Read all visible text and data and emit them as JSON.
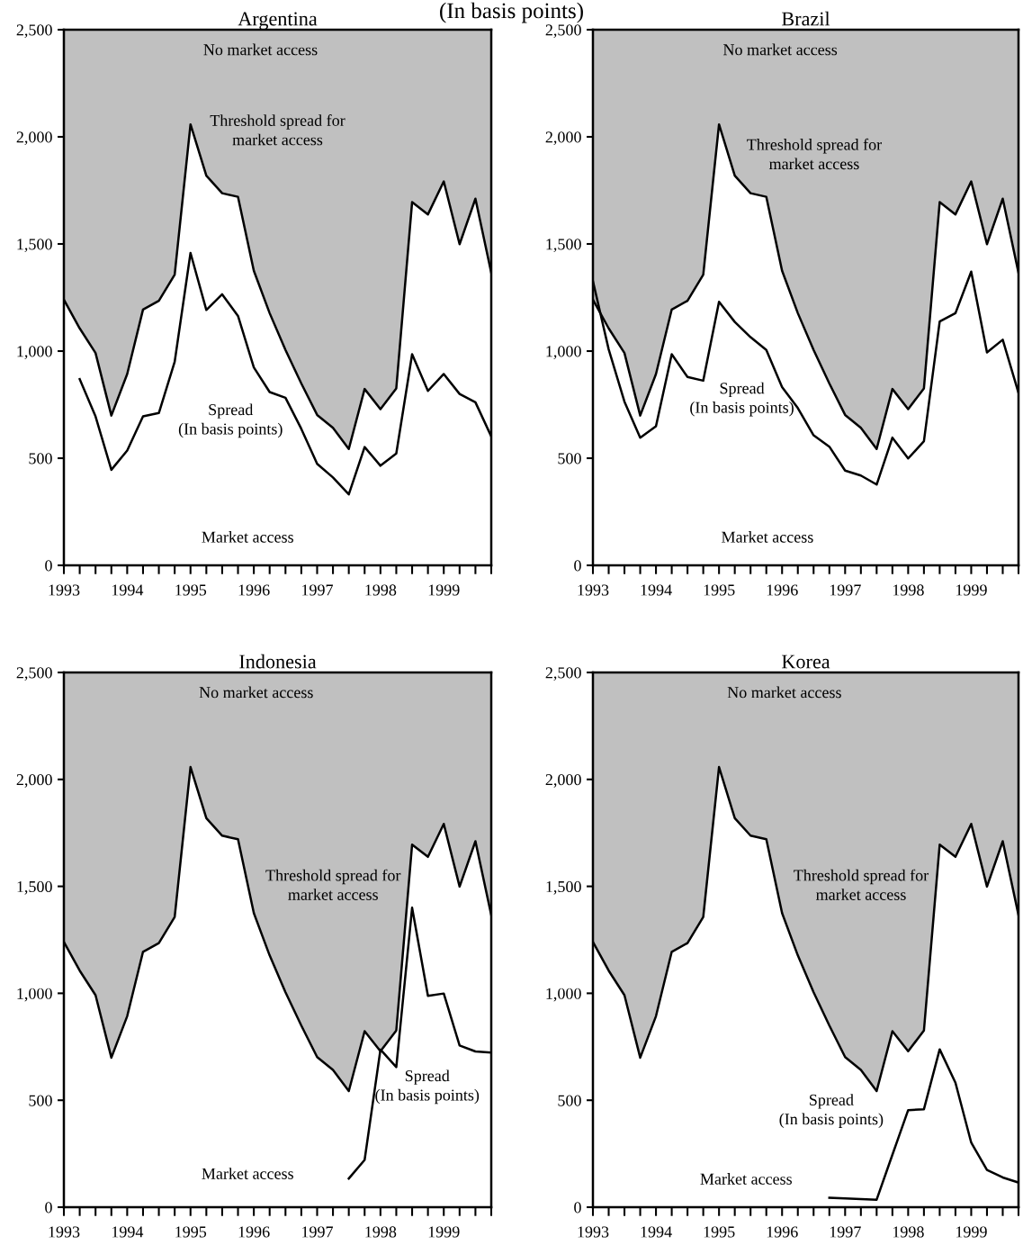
{
  "chart_data": [
    {
      "type": "line",
      "title": "Argentina",
      "annotations": [
        "(In basis points)",
        "No market access",
        "Threshold spread for\nmarket access",
        "Spread\n(In basis points)",
        "Market access"
      ],
      "x": [
        1993,
        1993.25,
        1993.5,
        1993.75,
        1994,
        1994.25,
        1994.5,
        1994.75,
        1995,
        1995.25,
        1995.5,
        1995.75,
        1996,
        1996.25,
        1996.5,
        1996.75,
        1997,
        1997.25,
        1997.5,
        1997.75,
        1998,
        1998.25,
        1998.5,
        1998.75,
        1999,
        1999.25,
        1999.5,
        1999.75
      ],
      "series": [
        {
          "type": "area",
          "color": "#ffffff",
          "values": [
            1240,
            1106,
            991,
            699,
            893,
            1194,
            1235,
            1357,
            2058,
            1819,
            1737,
            1720,
            1375,
            1177,
            1005,
            849,
            702,
            642,
            543,
            823,
            729,
            826,
            1695,
            1638,
            1792,
            1499,
            1711,
            1366
          ]
        },
        {
          "color": "#000000",
          "x": [
            1993.25,
            1993.5,
            1993.75,
            1994,
            1994.25,
            1994.5,
            1994.75,
            1995,
            1995.25,
            1995.5,
            1995.75,
            1996,
            1996.25,
            1996.5,
            1996.75,
            1997,
            1997.25,
            1997.5,
            1997.75,
            1998,
            1998.25,
            1998.5,
            1998.75,
            1999,
            1999.25,
            1999.5,
            1999.75
          ],
          "values": [
            869,
            695,
            446,
            536,
            695,
            711,
            950,
            1458,
            1192,
            1265,
            1164,
            924,
            809,
            782,
            637,
            474,
            410,
            331,
            552,
            465,
            522,
            985,
            814,
            893,
            800,
            761,
            602
          ]
        }
      ],
      "xlim": [
        1993,
        1999.75
      ],
      "ylim": [
        0,
        2500
      ],
      "xticks": [
        1993,
        {
          "value": 1993.25,
          "label": null
        },
        {
          "value": 1993.5,
          "label": null
        },
        {
          "value": 1993.75,
          "label": null
        },
        1994,
        {
          "value": 1994.25,
          "label": null
        },
        {
          "value": 1994.5,
          "label": null
        },
        {
          "value": 1994.75,
          "label": null
        },
        1995,
        {
          "value": 1995.25,
          "label": null
        },
        {
          "value": 1995.5,
          "label": null
        },
        {
          "value": 1995.75,
          "label": null
        },
        1996,
        {
          "value": 1996.25,
          "label": null
        },
        {
          "value": 1996.5,
          "label": null
        },
        {
          "value": 1996.75,
          "label": null
        },
        1997,
        {
          "value": 1997.25,
          "label": null
        },
        {
          "value": 1997.5,
          "label": null
        },
        {
          "value": 1997.75,
          "label": null
        },
        1998,
        {
          "value": 1998.25,
          "label": null
        },
        {
          "value": 1998.5,
          "label": null
        },
        {
          "value": 1998.75,
          "label": null
        },
        1999,
        {
          "value": 1999.25,
          "label": null
        },
        {
          "value": 1999.5,
          "label": null
        },
        {
          "value": 1999.75,
          "label": null
        }
      ],
      "yticks": [
        0,
        {
          "value": 500,
          "label": "500"
        },
        {
          "value": 1000,
          "label": "1,000"
        },
        {
          "value": 1500,
          "label": "1,500"
        },
        {
          "value": 2000,
          "label": "2,000"
        },
        {
          "value": 2500,
          "label": "2,500"
        }
      ]
    },
    {
      "type": "line",
      "title": "Brazil",
      "annotations": [
        "No market access",
        "Threshold spread for\nmarket access",
        "Spread\n(In basis points)",
        "Market access"
      ],
      "x": [
        1993,
        1993.25,
        1993.5,
        1993.75,
        1994,
        1994.25,
        1994.5,
        1994.75,
        1995,
        1995.25,
        1995.5,
        1995.75,
        1996,
        1996.25,
        1996.5,
        1996.75,
        1997,
        1997.25,
        1997.5,
        1997.75,
        1998,
        1998.25,
        1998.5,
        1998.75,
        1999,
        1999.25,
        1999.5,
        1999.75
      ],
      "series": [
        {
          "type": "area",
          "color": "#ffffff",
          "values": [
            1240,
            1106,
            991,
            699,
            893,
            1194,
            1235,
            1357,
            2058,
            1819,
            1737,
            1720,
            1375,
            1177,
            1005,
            849,
            702,
            642,
            543,
            823,
            729,
            826,
            1695,
            1638,
            1792,
            1499,
            1711,
            1366
          ]
        },
        {
          "color": "#000000",
          "values": [
            1327,
            1008,
            764,
            596,
            649,
            985,
            879,
            862,
            1230,
            1136,
            1065,
            1005,
            832,
            734,
            607,
            554,
            442,
            419,
            377,
            596,
            499,
            579,
            1138,
            1177,
            1371,
            994,
            1053,
            805
          ]
        }
      ],
      "xlim": [
        1993,
        1999.75
      ],
      "ylim": [
        0,
        2500
      ],
      "xticks": [
        1993,
        {
          "value": 1993.25,
          "label": null
        },
        {
          "value": 1993.5,
          "label": null
        },
        {
          "value": 1993.75,
          "label": null
        },
        1994,
        {
          "value": 1994.25,
          "label": null
        },
        {
          "value": 1994.5,
          "label": null
        },
        {
          "value": 1994.75,
          "label": null
        },
        1995,
        {
          "value": 1995.25,
          "label": null
        },
        {
          "value": 1995.5,
          "label": null
        },
        {
          "value": 1995.75,
          "label": null
        },
        1996,
        {
          "value": 1996.25,
          "label": null
        },
        {
          "value": 1996.5,
          "label": null
        },
        {
          "value": 1996.75,
          "label": null
        },
        1997,
        {
          "value": 1997.25,
          "label": null
        },
        {
          "value": 1997.5,
          "label": null
        },
        {
          "value": 1997.75,
          "label": null
        },
        1998,
        {
          "value": 1998.25,
          "label": null
        },
        {
          "value": 1998.5,
          "label": null
        },
        {
          "value": 1998.75,
          "label": null
        },
        1999,
        {
          "value": 1999.25,
          "label": null
        },
        {
          "value": 1999.5,
          "label": null
        },
        {
          "value": 1999.75,
          "label": null
        }
      ],
      "yticks": [
        0,
        {
          "value": 500,
          "label": "500"
        },
        {
          "value": 1000,
          "label": "1,000"
        },
        {
          "value": 1500,
          "label": "1,500"
        },
        {
          "value": 2000,
          "label": "2,000"
        },
        {
          "value": 2500,
          "label": "2,500"
        }
      ]
    },
    {
      "type": "line",
      "title": "Indonesia",
      "annotations": [
        "No market access",
        "Threshold spread for\nmarket access",
        "Spread\n(In basis points)",
        "Market access"
      ],
      "x": [
        1993,
        1993.25,
        1993.5,
        1993.75,
        1994,
        1994.25,
        1994.5,
        1994.75,
        1995,
        1995.25,
        1995.5,
        1995.75,
        1996,
        1996.25,
        1996.5,
        1996.75,
        1997,
        1997.25,
        1997.5,
        1997.75,
        1998,
        1998.25,
        1998.5,
        1998.75,
        1999,
        1999.25,
        1999.5,
        1999.75
      ],
      "series": [
        {
          "type": "area",
          "color": "#ffffff",
          "values": [
            1240,
            1106,
            991,
            699,
            893,
            1194,
            1235,
            1357,
            2058,
            1819,
            1737,
            1720,
            1375,
            1177,
            1005,
            849,
            702,
            642,
            543,
            823,
            729,
            826,
            1695,
            1638,
            1792,
            1499,
            1711,
            1366
          ]
        },
        {
          "color": "#000000",
          "x": [
            1997.5,
            1997.75,
            1998,
            1998.25,
            1998.5,
            1998.75,
            1999,
            1999.25,
            1999.5,
            1999.75
          ],
          "values": [
            134,
            221,
            737,
            655,
            1400,
            988,
            999,
            756,
            728,
            723
          ]
        }
      ],
      "xlim": [
        1993,
        1999.75
      ],
      "ylim": [
        0,
        2500
      ],
      "xticks": [
        1993,
        {
          "value": 1993.25,
          "label": null
        },
        {
          "value": 1993.5,
          "label": null
        },
        {
          "value": 1993.75,
          "label": null
        },
        1994,
        {
          "value": 1994.25,
          "label": null
        },
        {
          "value": 1994.5,
          "label": null
        },
        {
          "value": 1994.75,
          "label": null
        },
        1995,
        {
          "value": 1995.25,
          "label": null
        },
        {
          "value": 1995.5,
          "label": null
        },
        {
          "value": 1995.75,
          "label": null
        },
        1996,
        {
          "value": 1996.25,
          "label": null
        },
        {
          "value": 1996.5,
          "label": null
        },
        {
          "value": 1996.75,
          "label": null
        },
        1997,
        {
          "value": 1997.25,
          "label": null
        },
        {
          "value": 1997.5,
          "label": null
        },
        {
          "value": 1997.75,
          "label": null
        },
        1998,
        {
          "value": 1998.25,
          "label": null
        },
        {
          "value": 1998.5,
          "label": null
        },
        {
          "value": 1998.75,
          "label": null
        },
        1999,
        {
          "value": 1999.25,
          "label": null
        },
        {
          "value": 1999.5,
          "label": null
        },
        {
          "value": 1999.75,
          "label": null
        }
      ],
      "yticks": [
        0,
        {
          "value": 500,
          "label": "500"
        },
        {
          "value": 1000,
          "label": "1,000"
        },
        {
          "value": 1500,
          "label": "1,500"
        },
        {
          "value": 2000,
          "label": "2,000"
        },
        {
          "value": 2500,
          "label": "2,500"
        }
      ]
    },
    {
      "type": "line",
      "title": "Korea",
      "annotations": [
        "No market access",
        "Threshold spread for\nmarket access",
        "Spread\n(In basis points)",
        "Market access"
      ],
      "x": [
        1993,
        1993.25,
        1993.5,
        1993.75,
        1994,
        1994.25,
        1994.5,
        1994.75,
        1995,
        1995.25,
        1995.5,
        1995.75,
        1996,
        1996.25,
        1996.5,
        1996.75,
        1997,
        1997.25,
        1997.5,
        1997.75,
        1998,
        1998.25,
        1998.5,
        1998.75,
        1999,
        1999.25,
        1999.5,
        1999.75
      ],
      "series": [
        {
          "type": "area",
          "color": "#ffffff",
          "values": [
            1240,
            1106,
            991,
            699,
            893,
            1194,
            1235,
            1357,
            2058,
            1819,
            1737,
            1720,
            1375,
            1177,
            1005,
            849,
            702,
            642,
            543,
            823,
            729,
            826,
            1695,
            1638,
            1792,
            1499,
            1711,
            1366
          ]
        },
        {
          "color": "#000000",
          "x": [
            1996.75,
            1997,
            1997.25,
            1997.5,
            1997.75,
            1998,
            1998.25,
            1998.5,
            1998.75,
            1999,
            1999.25,
            1999.5,
            1999.75
          ],
          "values": [
            44,
            41,
            38,
            35,
            245,
            454,
            458,
            738,
            582,
            302,
            174,
            139,
            115
          ]
        }
      ],
      "xlim": [
        1993,
        1999.75
      ],
      "ylim": [
        0,
        2500
      ],
      "xticks": [
        1993,
        {
          "value": 1993.25,
          "label": null
        },
        {
          "value": 1993.5,
          "label": null
        },
        {
          "value": 1993.75,
          "label": null
        },
        1994,
        {
          "value": 1994.25,
          "label": null
        },
        {
          "value": 1994.5,
          "label": null
        },
        {
          "value": 1994.75,
          "label": null
        },
        1995,
        {
          "value": 1995.25,
          "label": null
        },
        {
          "value": 1995.5,
          "label": null
        },
        {
          "value": 1995.75,
          "label": null
        },
        1996,
        {
          "value": 1996.25,
          "label": null
        },
        {
          "value": 1996.5,
          "label": null
        },
        {
          "value": 1996.75,
          "label": null
        },
        1997,
        {
          "value": 1997.25,
          "label": null
        },
        {
          "value": 1997.5,
          "label": null
        },
        {
          "value": 1997.75,
          "label": null
        },
        1998,
        {
          "value": 1998.25,
          "label": null
        },
        {
          "value": 1998.5,
          "label": null
        },
        {
          "value": 1998.75,
          "label": null
        },
        1999,
        {
          "value": 1999.25,
          "label": null
        },
        {
          "value": 1999.5,
          "label": null
        },
        {
          "value": 1999.75,
          "label": null
        }
      ],
      "yticks": [
        0,
        {
          "value": 500,
          "label": "500"
        },
        {
          "value": 1000,
          "label": "1,000"
        },
        {
          "value": 1500,
          "label": "1,500"
        },
        {
          "value": 2000,
          "label": "2,000"
        },
        {
          "value": 2500,
          "label": "2,500"
        }
      ]
    }
  ]
}
